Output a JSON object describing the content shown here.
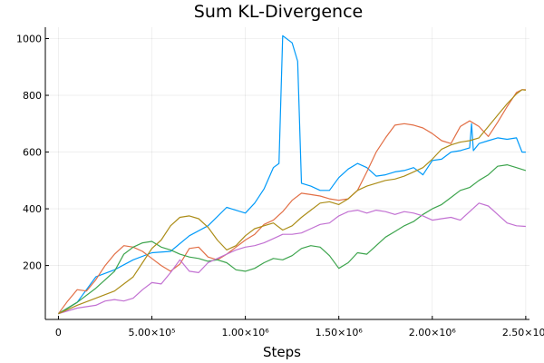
{
  "chart_data": {
    "type": "line",
    "title": "Sum KL-Divergence",
    "xlabel": "Steps",
    "ylabel": "",
    "xlim": [
      -70000,
      2520000
    ],
    "ylim": [
      10,
      1040
    ],
    "grid": true,
    "legend": "none",
    "x_ticks": [
      {
        "value": 0,
        "label": "0"
      },
      {
        "value": 500000,
        "label": "5.00×10⁵"
      },
      {
        "value": 1000000,
        "label": "1.00×10⁶"
      },
      {
        "value": 1500000,
        "label": "1.50×10⁶"
      },
      {
        "value": 2000000,
        "label": "2.00×10⁶"
      },
      {
        "value": 2500000,
        "label": "2.50×10⁶"
      }
    ],
    "y_ticks": [
      {
        "value": 200,
        "label": "200"
      },
      {
        "value": 400,
        "label": "400"
      },
      {
        "value": 600,
        "label": "600"
      },
      {
        "value": 800,
        "label": "800"
      },
      {
        "value": 1000,
        "label": "1000"
      }
    ],
    "series": [
      {
        "color": "#009af9",
        "points": [
          [
            0,
            30
          ],
          [
            100000,
            70
          ],
          [
            200000,
            160
          ],
          [
            300000,
            185
          ],
          [
            400000,
            220
          ],
          [
            500000,
            245
          ],
          [
            600000,
            250
          ],
          [
            700000,
            305
          ],
          [
            800000,
            340
          ],
          [
            900000,
            405
          ],
          [
            1000000,
            385
          ],
          [
            1050000,
            420
          ],
          [
            1100000,
            470
          ],
          [
            1150000,
            545
          ],
          [
            1180000,
            560
          ],
          [
            1200000,
            1010
          ],
          [
            1250000,
            985
          ],
          [
            1280000,
            920
          ],
          [
            1300000,
            490
          ],
          [
            1350000,
            480
          ],
          [
            1400000,
            465
          ],
          [
            1450000,
            465
          ],
          [
            1500000,
            510
          ],
          [
            1550000,
            540
          ],
          [
            1600000,
            560
          ],
          [
            1650000,
            545
          ],
          [
            1700000,
            515
          ],
          [
            1750000,
            520
          ],
          [
            1800000,
            530
          ],
          [
            1850000,
            535
          ],
          [
            1900000,
            545
          ],
          [
            1950000,
            520
          ],
          [
            2000000,
            570
          ],
          [
            2050000,
            575
          ],
          [
            2100000,
            600
          ],
          [
            2150000,
            605
          ],
          [
            2200000,
            615
          ],
          [
            2210000,
            700
          ],
          [
            2220000,
            605
          ],
          [
            2250000,
            630
          ],
          [
            2300000,
            640
          ],
          [
            2350000,
            650
          ],
          [
            2400000,
            645
          ],
          [
            2450000,
            650
          ],
          [
            2480000,
            600
          ],
          [
            2500000,
            600
          ]
        ]
      },
      {
        "color": "#e26f46",
        "points": [
          [
            0,
            30
          ],
          [
            50000,
            75
          ],
          [
            100000,
            115
          ],
          [
            150000,
            110
          ],
          [
            200000,
            150
          ],
          [
            250000,
            200
          ],
          [
            300000,
            240
          ],
          [
            350000,
            270
          ],
          [
            400000,
            265
          ],
          [
            450000,
            250
          ],
          [
            500000,
            225
          ],
          [
            550000,
            200
          ],
          [
            600000,
            180
          ],
          [
            650000,
            205
          ],
          [
            700000,
            260
          ],
          [
            750000,
            265
          ],
          [
            800000,
            230
          ],
          [
            850000,
            220
          ],
          [
            900000,
            240
          ],
          [
            950000,
            265
          ],
          [
            1000000,
            290
          ],
          [
            1050000,
            310
          ],
          [
            1100000,
            345
          ],
          [
            1150000,
            360
          ],
          [
            1200000,
            390
          ],
          [
            1250000,
            430
          ],
          [
            1300000,
            455
          ],
          [
            1350000,
            450
          ],
          [
            1400000,
            445
          ],
          [
            1450000,
            435
          ],
          [
            1500000,
            430
          ],
          [
            1550000,
            435
          ],
          [
            1600000,
            465
          ],
          [
            1650000,
            530
          ],
          [
            1700000,
            600
          ],
          [
            1750000,
            650
          ],
          [
            1800000,
            695
          ],
          [
            1850000,
            700
          ],
          [
            1900000,
            695
          ],
          [
            1950000,
            685
          ],
          [
            2000000,
            665
          ],
          [
            2050000,
            640
          ],
          [
            2100000,
            630
          ],
          [
            2150000,
            690
          ],
          [
            2200000,
            710
          ],
          [
            2250000,
            690
          ],
          [
            2300000,
            655
          ],
          [
            2350000,
            705
          ],
          [
            2400000,
            760
          ],
          [
            2450000,
            810
          ],
          [
            2480000,
            820
          ],
          [
            2500000,
            820
          ]
        ]
      },
      {
        "color": "#3da44d",
        "points": [
          [
            0,
            30
          ],
          [
            100000,
            70
          ],
          [
            200000,
            120
          ],
          [
            300000,
            180
          ],
          [
            350000,
            240
          ],
          [
            400000,
            265
          ],
          [
            450000,
            280
          ],
          [
            500000,
            285
          ],
          [
            550000,
            265
          ],
          [
            600000,
            255
          ],
          [
            650000,
            240
          ],
          [
            700000,
            230
          ],
          [
            750000,
            225
          ],
          [
            800000,
            215
          ],
          [
            850000,
            220
          ],
          [
            900000,
            210
          ],
          [
            950000,
            185
          ],
          [
            1000000,
            180
          ],
          [
            1050000,
            190
          ],
          [
            1100000,
            210
          ],
          [
            1150000,
            225
          ],
          [
            1200000,
            220
          ],
          [
            1250000,
            235
          ],
          [
            1300000,
            260
          ],
          [
            1350000,
            270
          ],
          [
            1400000,
            265
          ],
          [
            1450000,
            235
          ],
          [
            1500000,
            190
          ],
          [
            1550000,
            210
          ],
          [
            1600000,
            245
          ],
          [
            1650000,
            240
          ],
          [
            1700000,
            270
          ],
          [
            1750000,
            300
          ],
          [
            1800000,
            320
          ],
          [
            1850000,
            340
          ],
          [
            1900000,
            355
          ],
          [
            1950000,
            380
          ],
          [
            2000000,
            400
          ],
          [
            2050000,
            415
          ],
          [
            2100000,
            440
          ],
          [
            2150000,
            465
          ],
          [
            2200000,
            475
          ],
          [
            2250000,
            500
          ],
          [
            2300000,
            520
          ],
          [
            2350000,
            550
          ],
          [
            2400000,
            555
          ],
          [
            2450000,
            545
          ],
          [
            2500000,
            535
          ]
        ]
      },
      {
        "color": "#c271d2",
        "points": [
          [
            0,
            30
          ],
          [
            100000,
            50
          ],
          [
            200000,
            60
          ],
          [
            250000,
            75
          ],
          [
            300000,
            80
          ],
          [
            350000,
            75
          ],
          [
            400000,
            85
          ],
          [
            450000,
            115
          ],
          [
            500000,
            140
          ],
          [
            550000,
            135
          ],
          [
            600000,
            175
          ],
          [
            650000,
            220
          ],
          [
            700000,
            180
          ],
          [
            750000,
            175
          ],
          [
            800000,
            210
          ],
          [
            850000,
            225
          ],
          [
            900000,
            240
          ],
          [
            950000,
            255
          ],
          [
            1000000,
            265
          ],
          [
            1050000,
            270
          ],
          [
            1100000,
            280
          ],
          [
            1150000,
            295
          ],
          [
            1200000,
            310
          ],
          [
            1250000,
            310
          ],
          [
            1300000,
            315
          ],
          [
            1350000,
            330
          ],
          [
            1400000,
            345
          ],
          [
            1450000,
            350
          ],
          [
            1500000,
            375
          ],
          [
            1550000,
            390
          ],
          [
            1600000,
            395
          ],
          [
            1650000,
            385
          ],
          [
            1700000,
            395
          ],
          [
            1750000,
            390
          ],
          [
            1800000,
            380
          ],
          [
            1850000,
            390
          ],
          [
            1900000,
            385
          ],
          [
            1950000,
            375
          ],
          [
            2000000,
            360
          ],
          [
            2050000,
            365
          ],
          [
            2100000,
            370
          ],
          [
            2150000,
            360
          ],
          [
            2200000,
            390
          ],
          [
            2250000,
            420
          ],
          [
            2300000,
            410
          ],
          [
            2350000,
            380
          ],
          [
            2400000,
            350
          ],
          [
            2450000,
            340
          ],
          [
            2500000,
            338
          ]
        ]
      },
      {
        "color": "#ac8d18",
        "points": [
          [
            0,
            30
          ],
          [
            100000,
            60
          ],
          [
            200000,
            85
          ],
          [
            300000,
            110
          ],
          [
            400000,
            160
          ],
          [
            450000,
            210
          ],
          [
            500000,
            260
          ],
          [
            550000,
            290
          ],
          [
            600000,
            340
          ],
          [
            650000,
            370
          ],
          [
            700000,
            375
          ],
          [
            750000,
            365
          ],
          [
            800000,
            335
          ],
          [
            850000,
            290
          ],
          [
            900000,
            255
          ],
          [
            950000,
            270
          ],
          [
            1000000,
            305
          ],
          [
            1050000,
            330
          ],
          [
            1100000,
            340
          ],
          [
            1150000,
            350
          ],
          [
            1200000,
            325
          ],
          [
            1250000,
            340
          ],
          [
            1300000,
            370
          ],
          [
            1350000,
            395
          ],
          [
            1400000,
            420
          ],
          [
            1450000,
            425
          ],
          [
            1500000,
            415
          ],
          [
            1550000,
            435
          ],
          [
            1600000,
            465
          ],
          [
            1650000,
            480
          ],
          [
            1700000,
            490
          ],
          [
            1750000,
            500
          ],
          [
            1800000,
            505
          ],
          [
            1850000,
            515
          ],
          [
            1900000,
            530
          ],
          [
            1950000,
            545
          ],
          [
            2000000,
            575
          ],
          [
            2050000,
            610
          ],
          [
            2100000,
            625
          ],
          [
            2150000,
            635
          ],
          [
            2200000,
            640
          ],
          [
            2250000,
            650
          ],
          [
            2300000,
            690
          ],
          [
            2350000,
            730
          ],
          [
            2400000,
            770
          ],
          [
            2450000,
            805
          ],
          [
            2480000,
            820
          ],
          [
            2500000,
            818
          ]
        ]
      }
    ]
  }
}
